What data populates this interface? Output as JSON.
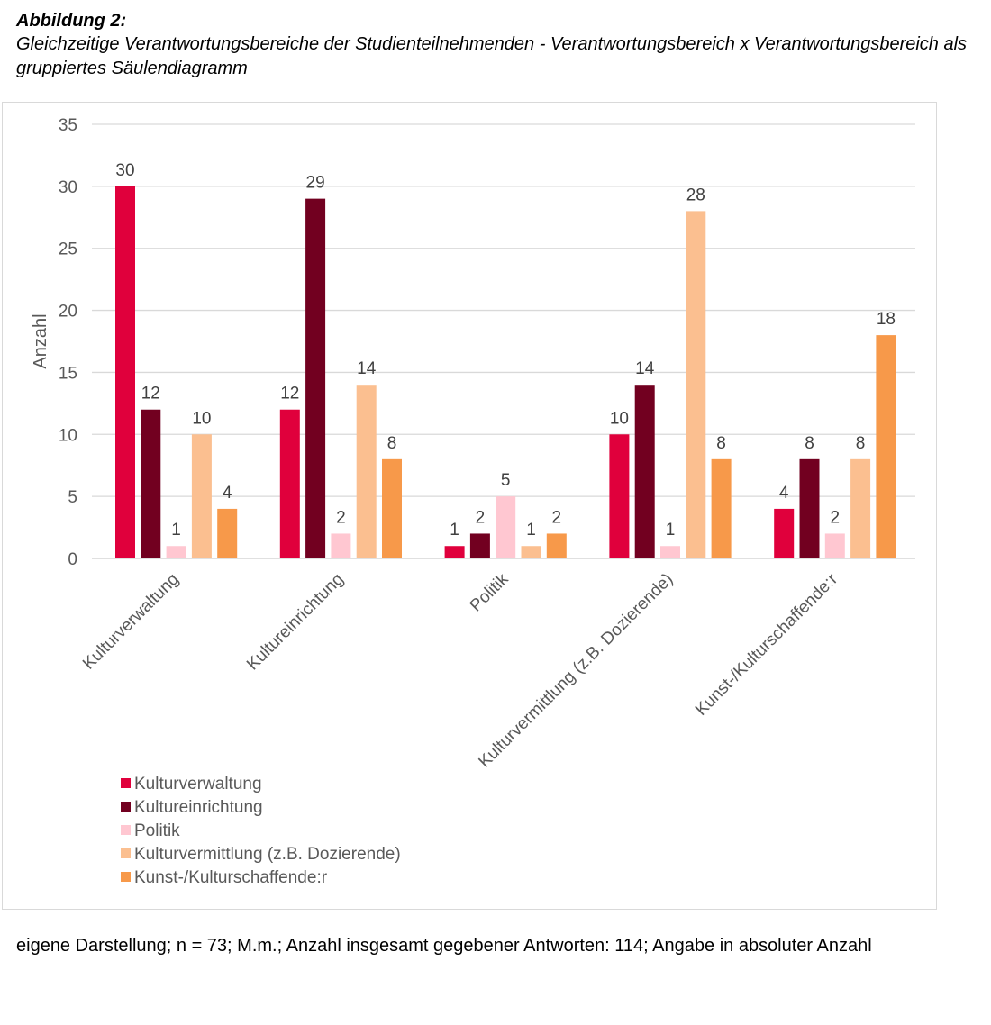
{
  "figure": {
    "label": "Abbildung 2:",
    "caption": "Gleichzeitige Verantwortungsbereiche der Studienteilnehmenden - Verantwortungsbereich x Verantwortungsbereich als gruppiertes Säulendiagramm",
    "note": "eigene Darstellung; n = 73; M.m.; Anzahl insgesamt gegebener Antworten: 114; Angabe in absoluter Anzahl"
  },
  "chart_data": {
    "type": "bar",
    "title": "",
    "xlabel": "",
    "ylabel": "Anzahl",
    "ylim": [
      0,
      35
    ],
    "yticks": [
      0,
      5,
      10,
      15,
      20,
      25,
      30,
      35
    ],
    "grid": true,
    "legend_position": "bottom-left",
    "categories": [
      "Kulturverwaltung",
      "Kultureinrichtung",
      "Politik",
      "Kulturvermittlung (z.B. Dozierende)",
      "Kunst-/Kulturschaffende:r"
    ],
    "series": [
      {
        "name": "Kulturverwaltung",
        "color": "#e0003c",
        "values": [
          30,
          12,
          1,
          10,
          4
        ]
      },
      {
        "name": "Kultureinrichtung",
        "color": "#720020",
        "values": [
          12,
          29,
          2,
          14,
          8
        ]
      },
      {
        "name": "Politik",
        "color": "#ffc7d1",
        "values": [
          1,
          2,
          5,
          1,
          2
        ]
      },
      {
        "name": "Kulturvermittlung (z.B. Dozierende)",
        "color": "#fbbf90",
        "values": [
          10,
          14,
          1,
          28,
          8
        ]
      },
      {
        "name": "Kunst-/Kulturschaffende:r",
        "color": "#f7994a",
        "values": [
          4,
          8,
          2,
          8,
          18
        ]
      }
    ]
  }
}
